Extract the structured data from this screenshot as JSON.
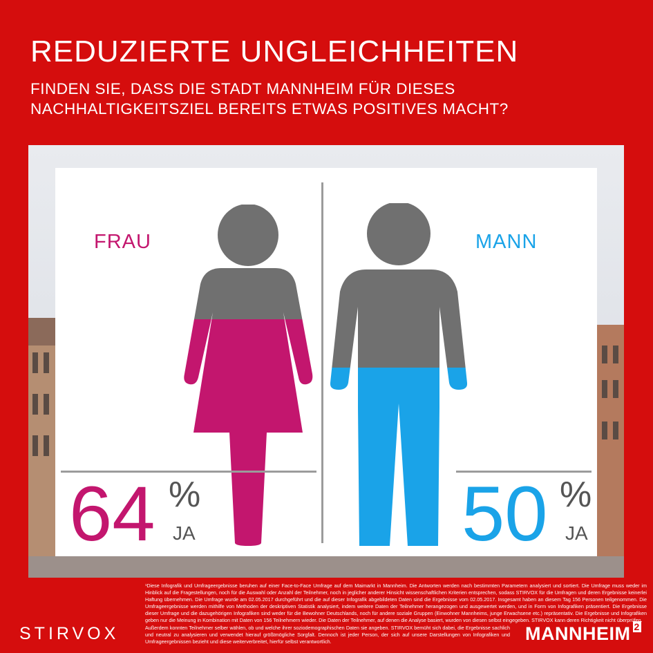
{
  "title": "REDUZIERTE UNGLEICHHEITEN",
  "subtitle": "FINDEN SIE, DASS DIE STADT MANNHEIM FÜR DIESES NACHHALTIGKEITSZIEL BEREITS ETWAS POSITIVES MACHT?",
  "female": {
    "label": "FRAU",
    "value": "64",
    "percent": "%",
    "answer": "JA",
    "share": 0.64,
    "color": "#c3166e"
  },
  "male": {
    "label": "MANN",
    "value": "50",
    "percent": "%",
    "answer": "JA",
    "share": 0.5,
    "color": "#1aa3e8"
  },
  "colors": {
    "background": "#d50d0d",
    "figure_gray": "#707070"
  },
  "footnote": "¹Diese Infografik und Umfrageergebnisse beruhen auf einer Face-to-Face Umfrage auf dem Maimarkt in Mannheim. Die Antworten werden nach bestimmten Parametern analysiert und sortiert. Die Umfrage muss weder im Hinblick auf die Fragestellungen, noch für die Auswahl oder Anzahl der Teilnehmer, noch in jeglicher anderer Hinsicht wissenschaftlichen Kriterien entsprechen, sodass STIRVOX für die Umfragen und deren Ergebnisse keinerlei Haftung übernehmen. Die Umfrage wurde am 02.05.2017 durchgeführt und die auf dieser Infografik abgebildeten Daten sind die Ergebnisse vom 02.05.2017. Insgesamt haben an diesem Tag 156 Personen teilgenommen. Die Umfrageergebnisse werden mithilfe von Methoden der deskriptiven Statistik analysiert, indem weitere Daten der Teilnehmer herangezogen und ausgewertet werden, und in Form von Infografiken präsentiert. Die Ergebnisse dieser Umfrage und die dazugehörigen Infografiken sind weder für die Bewohner Deutschlands, noch für andere soziale Gruppen (Einwohner Mannheims, junge Erwachsene etc.) repräsentativ. Die Ergebnisse und Infografiken geben nur die Meinung in Kombination mit Daten von 156 Teilnehmern wieder. Die Daten der Teilnehmer, auf denen die Analyse basiert, wurden von diesen selbst eingegeben. STIRVOX kann deren Richtigkeit nicht überprüfen.",
  "footnote2": "Außerdem konnten Teilnehmer selber wählen, ob und welche ihrer soziodemographischen Daten sie angeben. STIRVOX bemüht sich dabei, die Ergebnisse sachlich und neutral zu analysieren und verwendet hierauf größtmögliche Sorgfalt. Dennoch ist jeder Person, der sich auf unsere Darstellungen von Infografiken und Umfrageergebnissen bezieht und diese weiterverbreitet, hierfür selbst verantwortlich.",
  "brand_left": "STIRVOX",
  "brand_right": "MANNHEIM",
  "brand_right_sup": "2"
}
